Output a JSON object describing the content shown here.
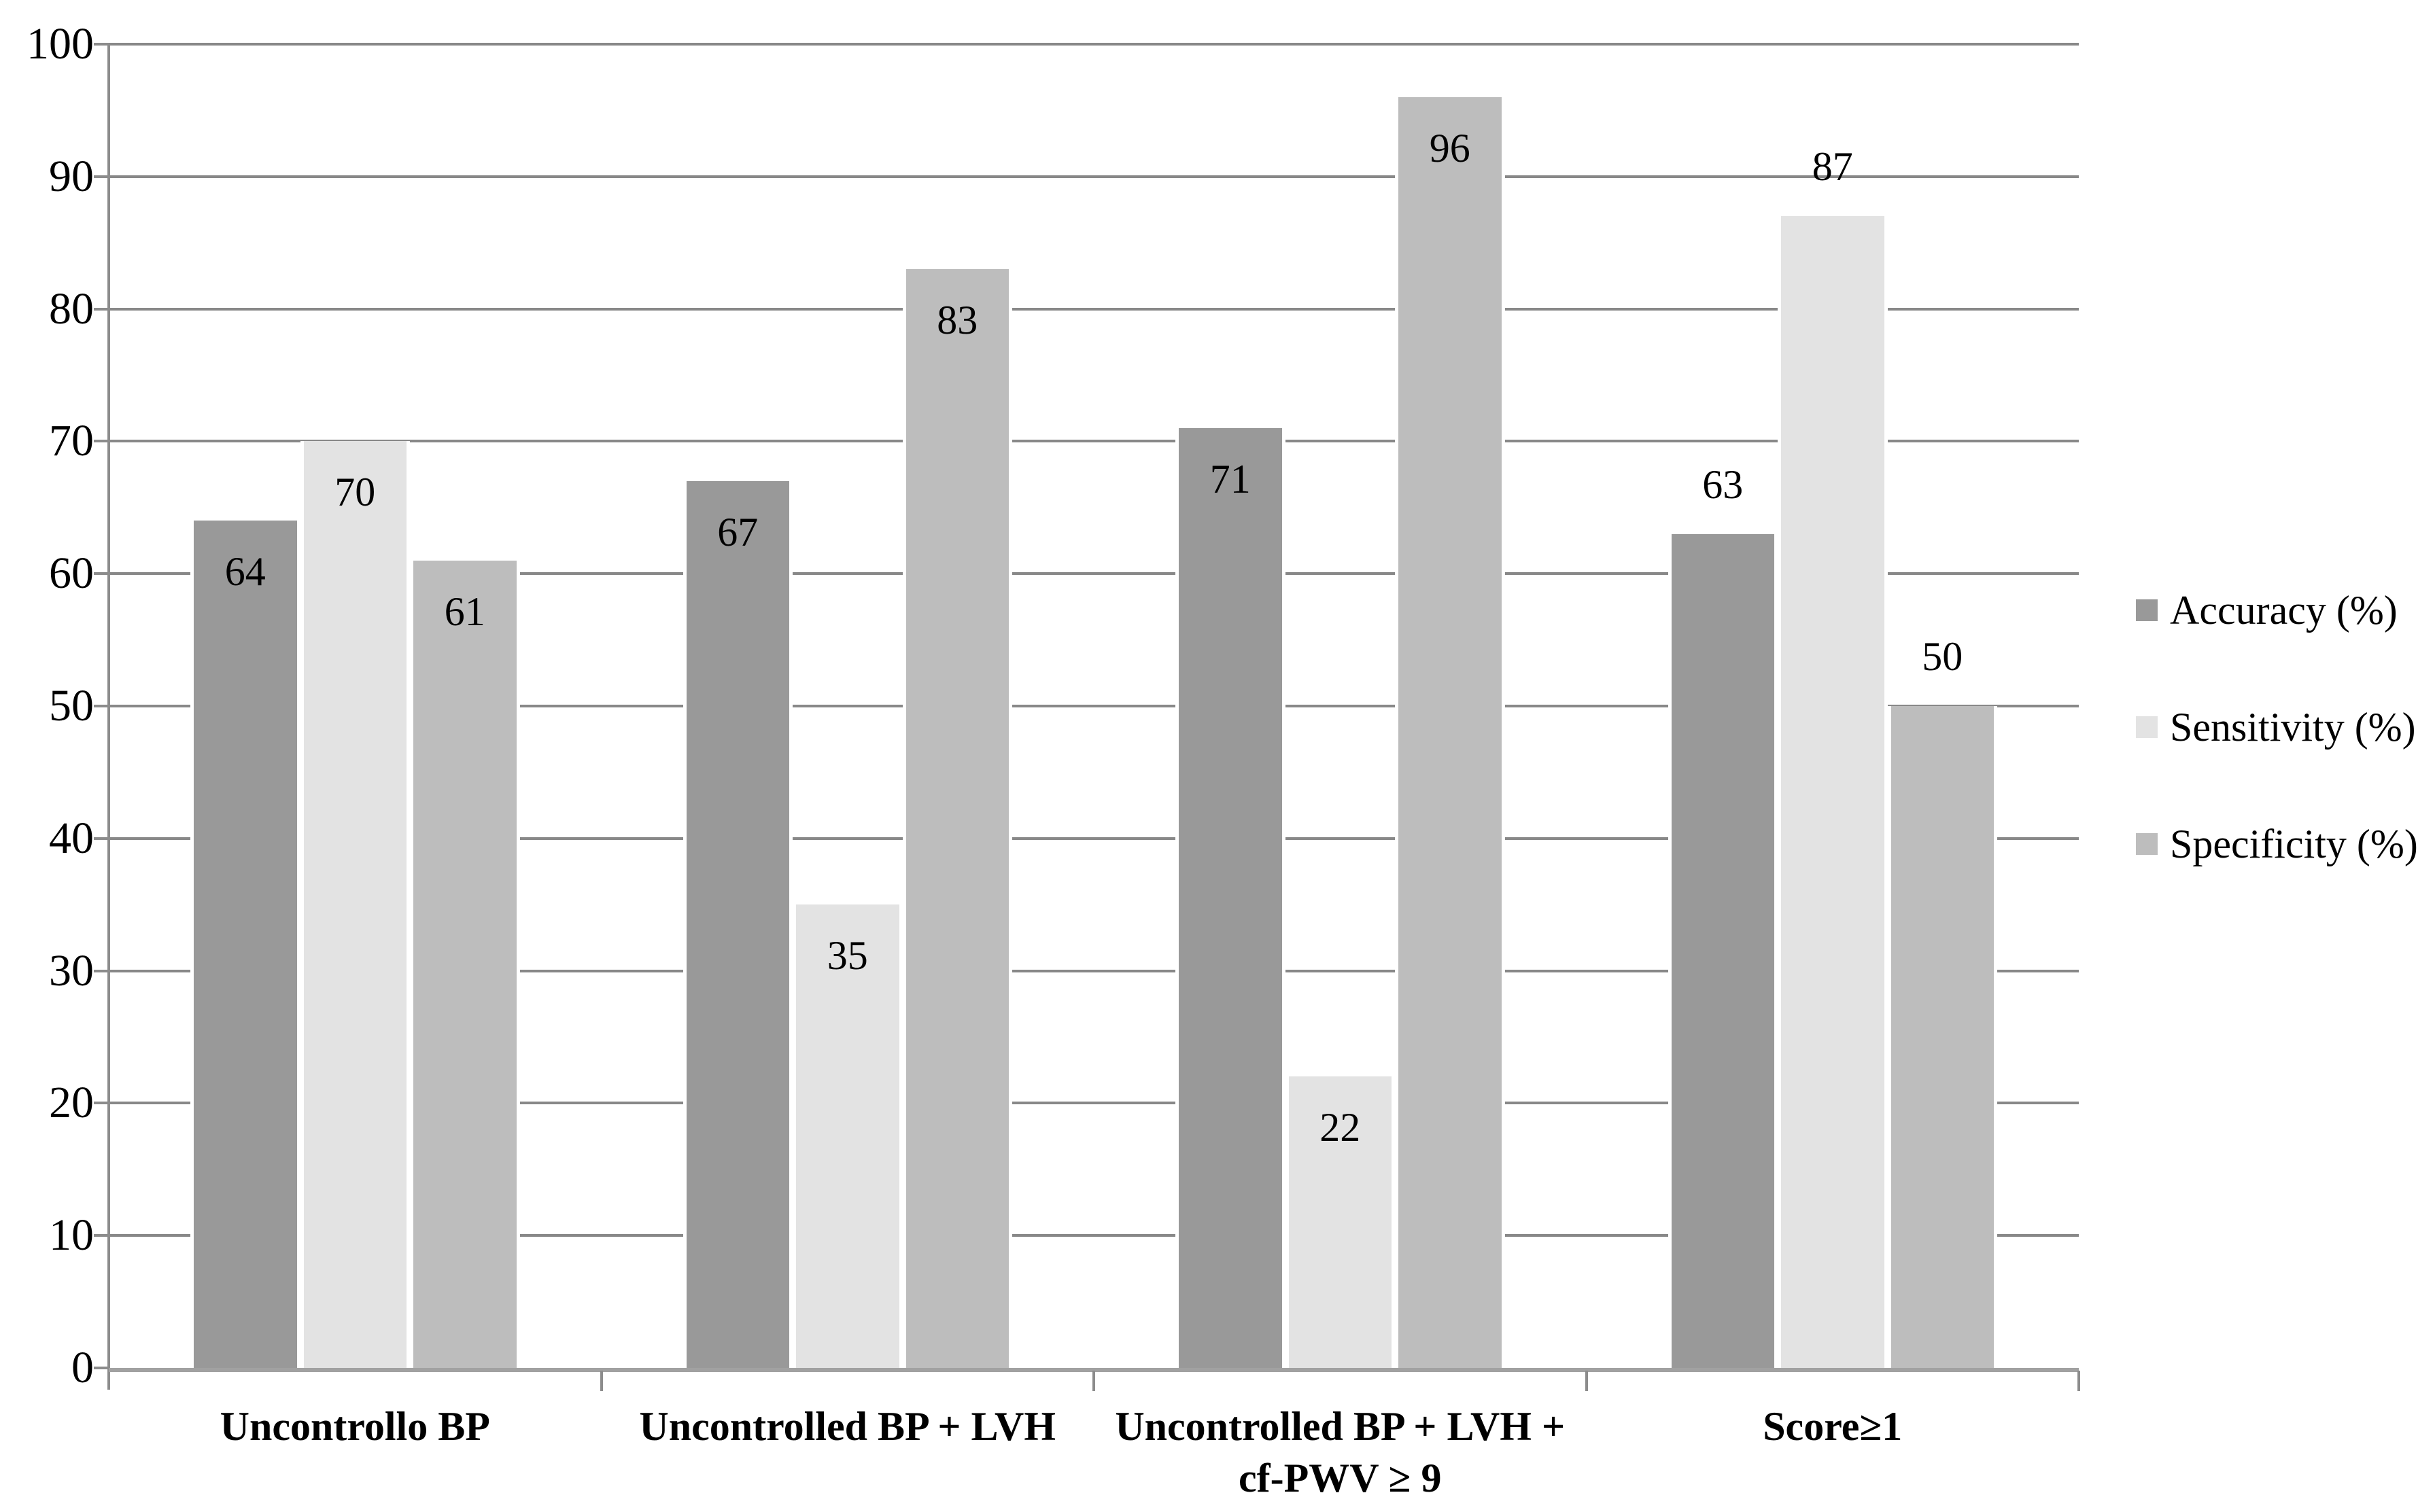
{
  "chart_data": {
    "type": "bar",
    "title": "",
    "categories": [
      {
        "lines": [
          "Uncontrollo BP"
        ]
      },
      {
        "lines": [
          "Uncontrolled BP + LVH"
        ]
      },
      {
        "lines": [
          "Uncontrolled BP + LVH +",
          "cf-PWV ≥ 9"
        ]
      },
      {
        "lines": [
          "Score≥1"
        ]
      }
    ],
    "series": [
      {
        "name": "Accuracy (%)",
        "color": "#999999",
        "values": [
          64,
          67,
          71,
          63
        ]
      },
      {
        "name": "Sensitivity (%)",
        "color": "#e3e3e3",
        "values": [
          70,
          35,
          22,
          87
        ]
      },
      {
        "name": "Specificity (%)",
        "color": "#bdbdbd",
        "values": [
          61,
          83,
          96,
          50
        ]
      }
    ],
    "value_labels_visible": true,
    "value_label_placement_by_category": [
      "inside-top",
      "inside-top",
      "inside-top",
      "above"
    ],
    "ylim": [
      0,
      100
    ],
    "ytick_step": 10,
    "yticks": [
      0,
      10,
      20,
      30,
      40,
      50,
      60,
      70,
      80,
      90,
      100
    ],
    "grid": true,
    "legend_position": "right",
    "colors": {
      "gridline": "#888888",
      "axis": "#a1a1a1",
      "tick": "#8c8c8c",
      "text": "#000000",
      "background": "#ffffff"
    }
  }
}
